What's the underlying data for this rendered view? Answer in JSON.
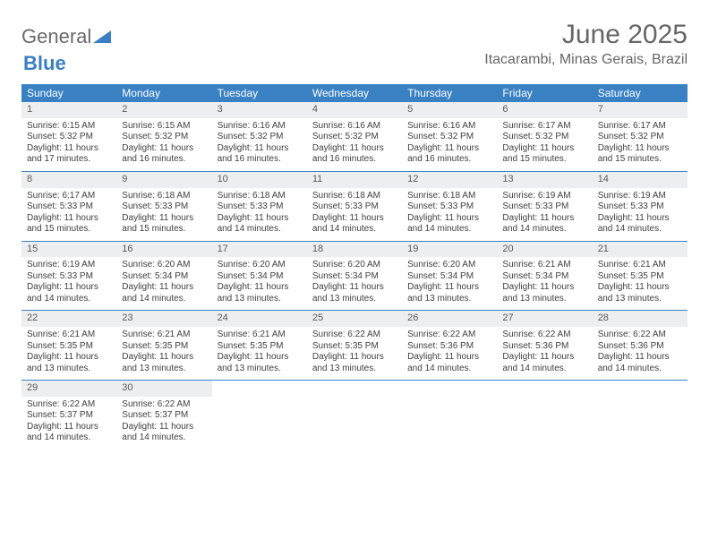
{
  "brand": {
    "name1": "General",
    "name2": "Blue"
  },
  "title": "June 2025",
  "location": "Itacarambi, Minas Gerais, Brazil",
  "colors": {
    "header_bg": "#3a81c4",
    "header_fg": "#ffffff",
    "daynum_bg": "#eceef0",
    "text": "#404040",
    "title": "#666666"
  },
  "days_of_week": [
    "Sunday",
    "Monday",
    "Tuesday",
    "Wednesday",
    "Thursday",
    "Friday",
    "Saturday"
  ],
  "weeks": [
    [
      {
        "n": "1",
        "sr": "Sunrise: 6:15 AM",
        "ss": "Sunset: 5:32 PM",
        "d1": "Daylight: 11 hours",
        "d2": "and 17 minutes."
      },
      {
        "n": "2",
        "sr": "Sunrise: 6:15 AM",
        "ss": "Sunset: 5:32 PM",
        "d1": "Daylight: 11 hours",
        "d2": "and 16 minutes."
      },
      {
        "n": "3",
        "sr": "Sunrise: 6:16 AM",
        "ss": "Sunset: 5:32 PM",
        "d1": "Daylight: 11 hours",
        "d2": "and 16 minutes."
      },
      {
        "n": "4",
        "sr": "Sunrise: 6:16 AM",
        "ss": "Sunset: 5:32 PM",
        "d1": "Daylight: 11 hours",
        "d2": "and 16 minutes."
      },
      {
        "n": "5",
        "sr": "Sunrise: 6:16 AM",
        "ss": "Sunset: 5:32 PM",
        "d1": "Daylight: 11 hours",
        "d2": "and 16 minutes."
      },
      {
        "n": "6",
        "sr": "Sunrise: 6:17 AM",
        "ss": "Sunset: 5:32 PM",
        "d1": "Daylight: 11 hours",
        "d2": "and 15 minutes."
      },
      {
        "n": "7",
        "sr": "Sunrise: 6:17 AM",
        "ss": "Sunset: 5:32 PM",
        "d1": "Daylight: 11 hours",
        "d2": "and 15 minutes."
      }
    ],
    [
      {
        "n": "8",
        "sr": "Sunrise: 6:17 AM",
        "ss": "Sunset: 5:33 PM",
        "d1": "Daylight: 11 hours",
        "d2": "and 15 minutes."
      },
      {
        "n": "9",
        "sr": "Sunrise: 6:18 AM",
        "ss": "Sunset: 5:33 PM",
        "d1": "Daylight: 11 hours",
        "d2": "and 15 minutes."
      },
      {
        "n": "10",
        "sr": "Sunrise: 6:18 AM",
        "ss": "Sunset: 5:33 PM",
        "d1": "Daylight: 11 hours",
        "d2": "and 14 minutes."
      },
      {
        "n": "11",
        "sr": "Sunrise: 6:18 AM",
        "ss": "Sunset: 5:33 PM",
        "d1": "Daylight: 11 hours",
        "d2": "and 14 minutes."
      },
      {
        "n": "12",
        "sr": "Sunrise: 6:18 AM",
        "ss": "Sunset: 5:33 PM",
        "d1": "Daylight: 11 hours",
        "d2": "and 14 minutes."
      },
      {
        "n": "13",
        "sr": "Sunrise: 6:19 AM",
        "ss": "Sunset: 5:33 PM",
        "d1": "Daylight: 11 hours",
        "d2": "and 14 minutes."
      },
      {
        "n": "14",
        "sr": "Sunrise: 6:19 AM",
        "ss": "Sunset: 5:33 PM",
        "d1": "Daylight: 11 hours",
        "d2": "and 14 minutes."
      }
    ],
    [
      {
        "n": "15",
        "sr": "Sunrise: 6:19 AM",
        "ss": "Sunset: 5:33 PM",
        "d1": "Daylight: 11 hours",
        "d2": "and 14 minutes."
      },
      {
        "n": "16",
        "sr": "Sunrise: 6:20 AM",
        "ss": "Sunset: 5:34 PM",
        "d1": "Daylight: 11 hours",
        "d2": "and 14 minutes."
      },
      {
        "n": "17",
        "sr": "Sunrise: 6:20 AM",
        "ss": "Sunset: 5:34 PM",
        "d1": "Daylight: 11 hours",
        "d2": "and 13 minutes."
      },
      {
        "n": "18",
        "sr": "Sunrise: 6:20 AM",
        "ss": "Sunset: 5:34 PM",
        "d1": "Daylight: 11 hours",
        "d2": "and 13 minutes."
      },
      {
        "n": "19",
        "sr": "Sunrise: 6:20 AM",
        "ss": "Sunset: 5:34 PM",
        "d1": "Daylight: 11 hours",
        "d2": "and 13 minutes."
      },
      {
        "n": "20",
        "sr": "Sunrise: 6:21 AM",
        "ss": "Sunset: 5:34 PM",
        "d1": "Daylight: 11 hours",
        "d2": "and 13 minutes."
      },
      {
        "n": "21",
        "sr": "Sunrise: 6:21 AM",
        "ss": "Sunset: 5:35 PM",
        "d1": "Daylight: 11 hours",
        "d2": "and 13 minutes."
      }
    ],
    [
      {
        "n": "22",
        "sr": "Sunrise: 6:21 AM",
        "ss": "Sunset: 5:35 PM",
        "d1": "Daylight: 11 hours",
        "d2": "and 13 minutes."
      },
      {
        "n": "23",
        "sr": "Sunrise: 6:21 AM",
        "ss": "Sunset: 5:35 PM",
        "d1": "Daylight: 11 hours",
        "d2": "and 13 minutes."
      },
      {
        "n": "24",
        "sr": "Sunrise: 6:21 AM",
        "ss": "Sunset: 5:35 PM",
        "d1": "Daylight: 11 hours",
        "d2": "and 13 minutes."
      },
      {
        "n": "25",
        "sr": "Sunrise: 6:22 AM",
        "ss": "Sunset: 5:35 PM",
        "d1": "Daylight: 11 hours",
        "d2": "and 13 minutes."
      },
      {
        "n": "26",
        "sr": "Sunrise: 6:22 AM",
        "ss": "Sunset: 5:36 PM",
        "d1": "Daylight: 11 hours",
        "d2": "and 14 minutes."
      },
      {
        "n": "27",
        "sr": "Sunrise: 6:22 AM",
        "ss": "Sunset: 5:36 PM",
        "d1": "Daylight: 11 hours",
        "d2": "and 14 minutes."
      },
      {
        "n": "28",
        "sr": "Sunrise: 6:22 AM",
        "ss": "Sunset: 5:36 PM",
        "d1": "Daylight: 11 hours",
        "d2": "and 14 minutes."
      }
    ],
    [
      {
        "n": "29",
        "sr": "Sunrise: 6:22 AM",
        "ss": "Sunset: 5:37 PM",
        "d1": "Daylight: 11 hours",
        "d2": "and 14 minutes."
      },
      {
        "n": "30",
        "sr": "Sunrise: 6:22 AM",
        "ss": "Sunset: 5:37 PM",
        "d1": "Daylight: 11 hours",
        "d2": "and 14 minutes."
      },
      null,
      null,
      null,
      null,
      null
    ]
  ]
}
